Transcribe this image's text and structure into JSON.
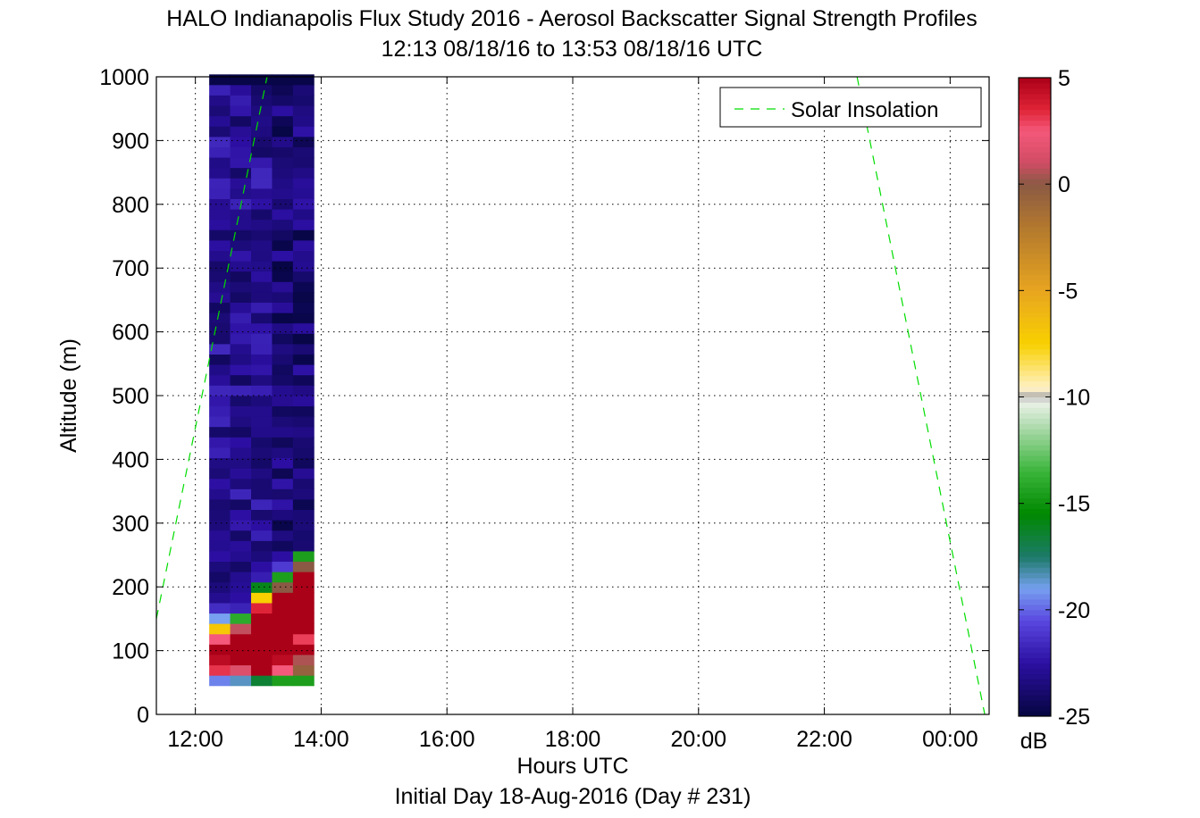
{
  "chart_data": {
    "type": "heatmap",
    "title": "HALO Indianapolis Flux Study 2016 - Aerosol Backscatter Signal Strength Profiles",
    "subtitle": "12:13 08/18/16 to 13:53 08/18/16  UTC",
    "xlabel": "Hours UTC",
    "xlabel2": "Initial Day 18-Aug-2016 (Day # 231)",
    "ylabel": "Altitude (m)",
    "xlim": [
      11.38,
      24.62
    ],
    "ylim": [
      0,
      1000
    ],
    "x_ticks": [
      {
        "value": 12,
        "label": "12:00"
      },
      {
        "value": 14,
        "label": "14:00"
      },
      {
        "value": 16,
        "label": "16:00"
      },
      {
        "value": 18,
        "label": "18:00"
      },
      {
        "value": 20,
        "label": "20:00"
      },
      {
        "value": 22,
        "label": "22:00"
      },
      {
        "value": 24,
        "label": "00:00"
      }
    ],
    "y_ticks": [
      {
        "value": 0,
        "label": "0"
      },
      {
        "value": 100,
        "label": "100"
      },
      {
        "value": 200,
        "label": "200"
      },
      {
        "value": 300,
        "label": "300"
      },
      {
        "value": 400,
        "label": "400"
      },
      {
        "value": 500,
        "label": "500"
      },
      {
        "value": 600,
        "label": "600"
      },
      {
        "value": 700,
        "label": "700"
      },
      {
        "value": 800,
        "label": "800"
      },
      {
        "value": 900,
        "label": "900"
      },
      {
        "value": 1000,
        "label": "1000"
      }
    ],
    "grid": true,
    "legend": {
      "placement": "top-right",
      "entries": [
        {
          "name": "Solar Insolation",
          "style": "dashed",
          "color": "#00dd00"
        }
      ]
    },
    "heatmap": {
      "time_start": 12.22,
      "time_step": 0.333,
      "altitude_start": 45,
      "altitude_step": 16.25,
      "columns": 5,
      "rows": 59
    },
    "solar_insolation": [
      {
        "x": 11.38,
        "y": 150
      },
      {
        "x": 13.14,
        "y": 1000
      },
      {
        "x": 22.52,
        "y": 1000
      },
      {
        "x": 24.55,
        "y": 0
      }
    ],
    "colorbar": {
      "range": [
        -25,
        5
      ],
      "unit": "dB",
      "ticks": [
        {
          "value": 5,
          "label": "5"
        },
        {
          "value": 0,
          "label": "0"
        },
        {
          "value": -5,
          "label": "-5"
        },
        {
          "value": -10,
          "label": "-10"
        },
        {
          "value": -15,
          "label": "-15"
        },
        {
          "value": -20,
          "label": "-20"
        },
        {
          "value": -25,
          "label": "-25"
        }
      ],
      "color_stops": [
        {
          "value": -25,
          "color": "#050540"
        },
        {
          "value": -22.5,
          "color": "#2c0fa2"
        },
        {
          "value": -20.5,
          "color": "#5a48e0"
        },
        {
          "value": -19,
          "color": "#77a0f0"
        },
        {
          "value": -17.5,
          "color": "#1c7a68"
        },
        {
          "value": -15.5,
          "color": "#008800"
        },
        {
          "value": -13.5,
          "color": "#3ab53a"
        },
        {
          "value": -11.5,
          "color": "#a8d8a8"
        },
        {
          "value": -10.2,
          "color": "#eef2ea"
        },
        {
          "value": -10,
          "color": "#a8a8a8"
        },
        {
          "value": -9.6,
          "color": "#fff2c8"
        },
        {
          "value": -7.5,
          "color": "#f8d000"
        },
        {
          "value": -5,
          "color": "#e8a520"
        },
        {
          "value": -2,
          "color": "#b2782e"
        },
        {
          "value": 0,
          "color": "#8a5a44"
        },
        {
          "value": 1,
          "color": "#d04c64"
        },
        {
          "value": 2.5,
          "color": "#f4587a"
        },
        {
          "value": 3.5,
          "color": "#e02438"
        },
        {
          "value": 5,
          "color": "#aa0018"
        }
      ]
    }
  }
}
